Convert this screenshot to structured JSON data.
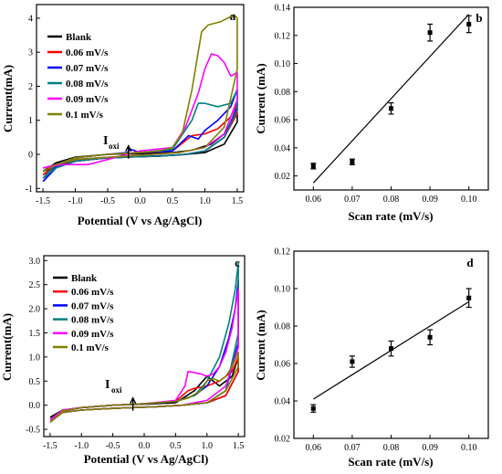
{
  "colors": {
    "blank": "#000000",
    "s006": "#ff0000",
    "s007": "#0000ff",
    "s008": "#008080",
    "s009": "#ff00ff",
    "s01": "#808000",
    "axis": "#000000"
  },
  "chart_data": [
    {
      "panel": "a",
      "type": "line",
      "xlabel": "Potential (V vs Ag/AgCl)",
      "ylabel": "Current(mA)",
      "xlim": [
        -1.6,
        1.6
      ],
      "ylim": [
        -1.1,
        4.4
      ],
      "xticks": [
        -1.5,
        -1.0,
        -0.5,
        0.0,
        0.5,
        1.0,
        1.5
      ],
      "xtick_labels": [
        "-1.5",
        "-1.0",
        "-0.5",
        "0.0",
        "0.5",
        "1.0",
        "1.5"
      ],
      "yticks": [
        -1,
        0,
        1,
        2,
        3,
        4
      ],
      "ytick_labels": [
        "-1",
        "0",
        "1",
        "2",
        "3",
        "4"
      ],
      "annotation": {
        "text": "I",
        "sub": "oxi",
        "x": -0.18,
        "y": 0.25
      },
      "legend": [
        "Blank",
        "0.06 mV/s",
        "0.07 mV/s",
        "0.08 mV/s",
        "0.09 mV/s",
        "0.1 mV/s"
      ],
      "series": [
        {
          "name": "Blank",
          "color_key": "blank",
          "x": [
            -1.5,
            -1.3,
            -1.0,
            -0.5,
            0.0,
            0.5,
            0.8,
            1.1,
            1.3,
            1.5,
            1.5,
            1.3,
            1.0,
            0.6,
            0.2,
            -0.2,
            -0.6,
            -1.0,
            -1.3,
            -1.5
          ],
          "y": [
            -0.5,
            -0.25,
            -0.08,
            0.0,
            0.02,
            0.05,
            0.12,
            0.3,
            0.6,
            1.2,
            0.95,
            0.3,
            0.05,
            -0.02,
            -0.05,
            -0.08,
            -0.12,
            -0.2,
            -0.35,
            -0.5
          ]
        },
        {
          "name": "0.06 mV/s",
          "color_key": "s006",
          "x": [
            -1.5,
            -1.3,
            -1.0,
            -0.5,
            0.0,
            0.5,
            0.8,
            1.0,
            1.2,
            1.4,
            1.5,
            1.5,
            1.3,
            1.0,
            0.7,
            0.3,
            -0.2,
            -0.6,
            -1.0,
            -1.3,
            -1.5
          ],
          "y": [
            -0.6,
            -0.3,
            -0.1,
            0.0,
            0.05,
            0.1,
            0.55,
            0.6,
            0.75,
            1.1,
            1.5,
            1.2,
            0.5,
            0.1,
            0.0,
            -0.05,
            -0.08,
            -0.12,
            -0.2,
            -0.4,
            -0.6
          ]
        },
        {
          "name": "0.07 mV/s",
          "color_key": "s007",
          "x": [
            -1.5,
            -1.3,
            -1.0,
            -0.5,
            -0.2,
            -0.15,
            0.0,
            0.5,
            0.75,
            0.9,
            1.0,
            1.2,
            1.4,
            1.5,
            1.5,
            1.3,
            1.0,
            0.7,
            0.3,
            -0.2,
            -0.6,
            -1.0,
            -1.3,
            -1.5
          ],
          "y": [
            -0.8,
            -0.35,
            -0.1,
            0.0,
            0.05,
            0.15,
            0.05,
            0.1,
            0.55,
            0.45,
            0.7,
            1.0,
            1.4,
            1.9,
            1.4,
            0.5,
            0.1,
            0.0,
            -0.05,
            -0.08,
            -0.12,
            -0.2,
            -0.4,
            -0.8
          ]
        },
        {
          "name": "0.08 mV/s",
          "color_key": "s008",
          "x": [
            -1.5,
            -1.3,
            -1.0,
            -0.5,
            0.0,
            0.5,
            0.8,
            0.9,
            1.0,
            1.2,
            1.4,
            1.5,
            1.5,
            1.3,
            1.0,
            0.7,
            0.3,
            -0.2,
            -0.6,
            -1.0,
            -1.3,
            -1.5
          ],
          "y": [
            -0.7,
            -0.3,
            -0.1,
            0.0,
            0.05,
            0.15,
            1.0,
            1.5,
            1.5,
            1.4,
            1.5,
            1.9,
            1.3,
            0.5,
            0.1,
            0.0,
            -0.05,
            -0.08,
            -0.12,
            -0.2,
            -0.4,
            -0.7
          ]
        },
        {
          "name": "0.09 mV/s",
          "color_key": "s009",
          "x": [
            -1.5,
            -1.2,
            -0.8,
            -0.5,
            -0.2,
            0.0,
            0.5,
            0.7,
            0.9,
            1.0,
            1.1,
            1.2,
            1.3,
            1.4,
            1.5,
            1.5,
            1.3,
            1.0,
            0.6,
            0.2,
            -0.2,
            -0.6,
            -1.0,
            -1.3,
            -1.5
          ],
          "y": [
            -0.4,
            -0.3,
            -0.3,
            -0.15,
            0.0,
            0.1,
            0.2,
            0.8,
            1.8,
            2.5,
            2.95,
            2.9,
            2.7,
            2.3,
            2.4,
            1.6,
            0.6,
            0.2,
            0.05,
            0.0,
            -0.05,
            -0.1,
            -0.15,
            -0.3,
            -0.4
          ]
        },
        {
          "name": "0.1 mV/s",
          "color_key": "s01",
          "x": [
            -1.5,
            -1.3,
            -1.0,
            -0.5,
            0.0,
            0.3,
            0.5,
            0.65,
            0.8,
            0.95,
            1.05,
            1.15,
            1.25,
            1.35,
            1.45,
            1.5,
            1.5,
            1.3,
            1.0,
            0.6,
            0.2,
            -0.2,
            -0.6,
            -1.0,
            -1.3,
            -1.5
          ],
          "y": [
            -0.5,
            -0.3,
            -0.1,
            0.0,
            0.05,
            0.1,
            0.2,
            0.6,
            1.9,
            3.6,
            3.8,
            3.85,
            3.9,
            4.0,
            4.1,
            4.0,
            2.5,
            0.8,
            0.2,
            0.05,
            0.0,
            -0.05,
            -0.1,
            -0.15,
            -0.3,
            -0.5
          ]
        }
      ]
    },
    {
      "panel": "b",
      "type": "scatter",
      "xlabel": "Scan rate (mV/s)",
      "ylabel": "Current (mA)",
      "xlim": [
        0.055,
        0.105
      ],
      "ylim": [
        0.01,
        0.14
      ],
      "xticks": [
        0.06,
        0.07,
        0.08,
        0.09,
        0.1
      ],
      "xtick_labels": [
        "0.06",
        "0.07",
        "0.08",
        "0.09",
        "0.10"
      ],
      "yticks": [
        0.02,
        0.04,
        0.06,
        0.08,
        0.1,
        0.12,
        0.14
      ],
      "ytick_labels": [
        "0.02",
        "0.04",
        "0.06",
        "0.08",
        "0.10",
        "0.12",
        "0.14"
      ],
      "x": [
        0.06,
        0.07,
        0.08,
        0.09,
        0.1
      ],
      "y": [
        0.027,
        0.03,
        0.068,
        0.122,
        0.128
      ],
      "err": [
        0.002,
        0.002,
        0.004,
        0.006,
        0.006
      ],
      "fit": {
        "x": [
          0.06,
          0.1
        ],
        "y": [
          0.015,
          0.135
        ]
      }
    },
    {
      "panel": "c",
      "type": "line",
      "xlabel": "Potential (V vs Ag/AgCl)",
      "ylabel": "Current(mA)",
      "xlim": [
        -1.6,
        1.6
      ],
      "ylim": [
        -0.65,
        3.1
      ],
      "xticks": [
        -1.5,
        -1.0,
        -0.5,
        0.0,
        0.5,
        1.0,
        1.5
      ],
      "xtick_labels": [
        "-1.5",
        "-1.0",
        "-0.5",
        "0.0",
        "0.5",
        "1.0",
        "1.5"
      ],
      "yticks": [
        -0.5,
        0.0,
        0.5,
        1.0,
        1.5,
        2.0,
        2.5,
        3.0
      ],
      "ytick_labels": [
        "-0.5",
        "0.0",
        "0.5",
        "1.0",
        "1.5",
        "2.0",
        "2.5",
        "3.0"
      ],
      "annotation": {
        "text": "I",
        "sub": "oxi",
        "x": -0.18,
        "y": 0.15
      },
      "legend": [
        "Blank",
        "0.06 mV/s",
        "0.07 mV/s",
        "0.08 mV/s",
        "0.09 mV/s",
        "0.1 mV/s"
      ],
      "series": [
        {
          "name": "Blank",
          "color_key": "blank",
          "x": [
            -1.5,
            -1.3,
            -1.0,
            -0.5,
            0.0,
            0.5,
            0.8,
            1.0,
            1.2,
            1.4,
            1.5,
            1.5,
            1.3,
            1.0,
            0.6,
            0.2,
            -0.2,
            -0.6,
            -1.0,
            -1.3,
            -1.5
          ],
          "y": [
            -0.25,
            -0.1,
            -0.05,
            0.0,
            0.02,
            0.05,
            0.3,
            0.6,
            0.4,
            0.6,
            1.0,
            0.7,
            0.2,
            0.05,
            0.0,
            -0.03,
            -0.05,
            -0.07,
            -0.1,
            -0.15,
            -0.25
          ]
        },
        {
          "name": "0.06 mV/s",
          "color_key": "s006",
          "x": [
            -1.5,
            -1.3,
            -1.0,
            -0.5,
            0.0,
            0.5,
            0.7,
            0.8,
            1.0,
            1.2,
            1.4,
            1.5,
            1.5,
            1.3,
            1.0,
            0.6,
            0.2,
            -0.2,
            -0.6,
            -1.0,
            -1.3,
            -1.5
          ],
          "y": [
            -0.3,
            -0.1,
            -0.05,
            0.0,
            0.03,
            0.08,
            0.3,
            0.35,
            0.4,
            0.5,
            0.7,
            1.0,
            0.7,
            0.2,
            0.05,
            0.0,
            -0.03,
            -0.05,
            -0.07,
            -0.1,
            -0.15,
            -0.3
          ]
        },
        {
          "name": "0.07 mV/s",
          "color_key": "s007",
          "x": [
            -1.5,
            -1.3,
            -1.0,
            -0.5,
            0.0,
            0.5,
            0.8,
            1.0,
            1.2,
            1.35,
            1.45,
            1.5,
            1.5,
            1.3,
            1.0,
            0.6,
            0.2,
            -0.2,
            -0.6,
            -1.0,
            -1.3,
            -1.5
          ],
          "y": [
            -0.35,
            -0.12,
            -0.05,
            0.0,
            0.03,
            0.08,
            0.2,
            0.4,
            0.8,
            1.4,
            2.0,
            2.6,
            1.3,
            0.3,
            0.05,
            0.0,
            -0.03,
            -0.05,
            -0.07,
            -0.1,
            -0.15,
            -0.35
          ]
        },
        {
          "name": "0.08 mV/s",
          "color_key": "s008",
          "x": [
            -1.5,
            -1.3,
            -1.0,
            -0.5,
            0.0,
            0.5,
            0.8,
            1.0,
            1.2,
            1.35,
            1.45,
            1.5,
            1.5,
            1.3,
            1.0,
            0.6,
            0.2,
            -0.2,
            -0.6,
            -1.0,
            -1.3,
            -1.5
          ],
          "y": [
            -0.3,
            -0.12,
            -0.05,
            0.0,
            0.03,
            0.08,
            0.2,
            0.5,
            1.0,
            1.7,
            2.4,
            2.95,
            1.5,
            0.3,
            0.05,
            0.0,
            -0.03,
            -0.05,
            -0.07,
            -0.1,
            -0.15,
            -0.3
          ]
        },
        {
          "name": "0.09 mV/s",
          "color_key": "s009",
          "x": [
            -1.5,
            -1.3,
            -1.0,
            -0.5,
            0.0,
            0.5,
            0.65,
            0.7,
            0.9,
            1.0,
            1.1,
            1.2,
            1.3,
            1.4,
            1.5,
            1.5,
            1.3,
            1.0,
            0.6,
            0.2,
            -0.2,
            -0.6,
            -1.0,
            -1.3,
            -1.5
          ],
          "y": [
            -0.3,
            -0.1,
            -0.05,
            0.0,
            0.03,
            0.1,
            0.4,
            0.7,
            0.65,
            0.6,
            0.65,
            0.8,
            1.1,
            1.6,
            2.4,
            1.2,
            0.4,
            0.1,
            0.0,
            -0.03,
            -0.05,
            -0.07,
            -0.1,
            -0.15,
            -0.3
          ]
        },
        {
          "name": "0.1 mV/s",
          "color_key": "s01",
          "x": [
            -1.5,
            -1.3,
            -1.0,
            -0.5,
            0.0,
            0.5,
            0.7,
            0.9,
            1.0,
            1.1,
            1.2,
            1.3,
            1.4,
            1.5,
            1.5,
            1.3,
            1.0,
            0.6,
            0.2,
            -0.2,
            -0.6,
            -1.0,
            -1.3,
            -1.5
          ],
          "y": [
            -0.35,
            -0.12,
            -0.05,
            0.0,
            0.03,
            0.08,
            0.15,
            0.3,
            0.5,
            0.55,
            0.5,
            0.6,
            0.8,
            1.1,
            0.8,
            0.3,
            0.05,
            0.0,
            -0.03,
            -0.05,
            -0.07,
            -0.1,
            -0.15,
            -0.35
          ]
        }
      ]
    },
    {
      "panel": "d",
      "type": "scatter",
      "xlabel": "Scan rate (mV/s)",
      "ylabel": "Current (mA)",
      "xlim": [
        0.055,
        0.105
      ],
      "ylim": [
        0.02,
        0.12
      ],
      "xticks": [
        0.06,
        0.07,
        0.08,
        0.09,
        0.1
      ],
      "xtick_labels": [
        "0.06",
        "0.07",
        "0.08",
        "0.09",
        "0.10"
      ],
      "yticks": [
        0.02,
        0.04,
        0.06,
        0.08,
        0.1,
        0.12
      ],
      "ytick_labels": [
        "0.02",
        "0.04",
        "0.06",
        "0.08",
        "0.10",
        "0.12"
      ],
      "x": [
        0.06,
        0.07,
        0.08,
        0.09,
        0.1
      ],
      "y": [
        0.036,
        0.061,
        0.068,
        0.074,
        0.095
      ],
      "err": [
        0.002,
        0.003,
        0.004,
        0.004,
        0.005
      ],
      "fit": {
        "x": [
          0.06,
          0.1
        ],
        "y": [
          0.041,
          0.093
        ]
      }
    }
  ]
}
